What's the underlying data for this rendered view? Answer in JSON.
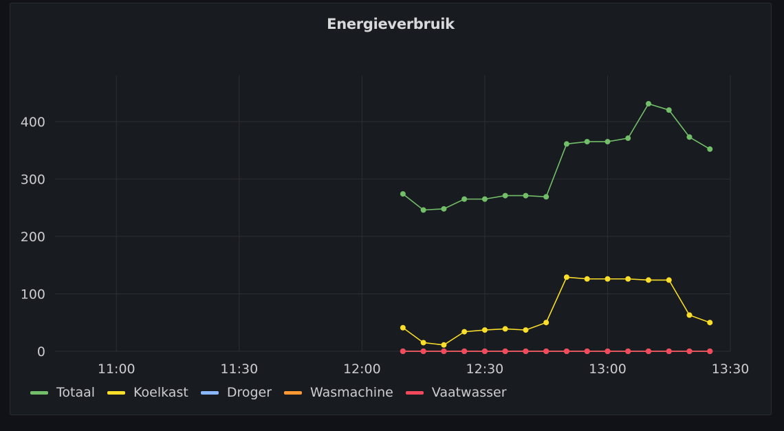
{
  "panel": {
    "title": "Energieverbruik"
  },
  "chart_data": {
    "type": "line",
    "title": "Energieverbruik",
    "xlabel": "",
    "ylabel": "",
    "x": [
      "12:10",
      "12:15",
      "12:20",
      "12:25",
      "12:30",
      "12:35",
      "12:40",
      "12:45",
      "12:50",
      "12:55",
      "13:00",
      "13:05",
      "13:10",
      "13:15",
      "13:20",
      "13:25"
    ],
    "xlim": [
      "10:45",
      "13:30"
    ],
    "ylim": [
      0,
      480
    ],
    "x_ticks": [
      "11:00",
      "11:30",
      "12:00",
      "12:30",
      "13:00",
      "13:30"
    ],
    "y_ticks": [
      0,
      100,
      200,
      300,
      400
    ],
    "grid": true,
    "legend_position": "bottom-left",
    "series": [
      {
        "name": "Totaal",
        "color": "#73bf69",
        "values": [
          274,
          246,
          248,
          265,
          265,
          271,
          271,
          269,
          361,
          365,
          365,
          371,
          431,
          420,
          373,
          352
        ]
      },
      {
        "name": "Koelkast",
        "color": "#fade2a",
        "values": [
          41,
          15,
          11,
          34,
          37,
          39,
          37,
          50,
          129,
          126,
          126,
          126,
          124,
          124,
          63,
          50
        ]
      },
      {
        "name": "Droger",
        "color": "#8ab8ff",
        "values": [
          0,
          0,
          0,
          0,
          0,
          0,
          0,
          0,
          0,
          0,
          0,
          0,
          0,
          0,
          0,
          0
        ]
      },
      {
        "name": "Wasmachine",
        "color": "#ff9830",
        "values": [
          0,
          0,
          0,
          0,
          0,
          0,
          0,
          0,
          0,
          0,
          0,
          0,
          0,
          0,
          0,
          0
        ]
      },
      {
        "name": "Vaatwasser",
        "color": "#f2495c",
        "values": [
          0,
          0,
          0,
          0,
          0,
          0,
          0,
          0,
          0,
          0,
          0,
          0,
          0,
          0,
          0,
          0
        ]
      }
    ]
  }
}
